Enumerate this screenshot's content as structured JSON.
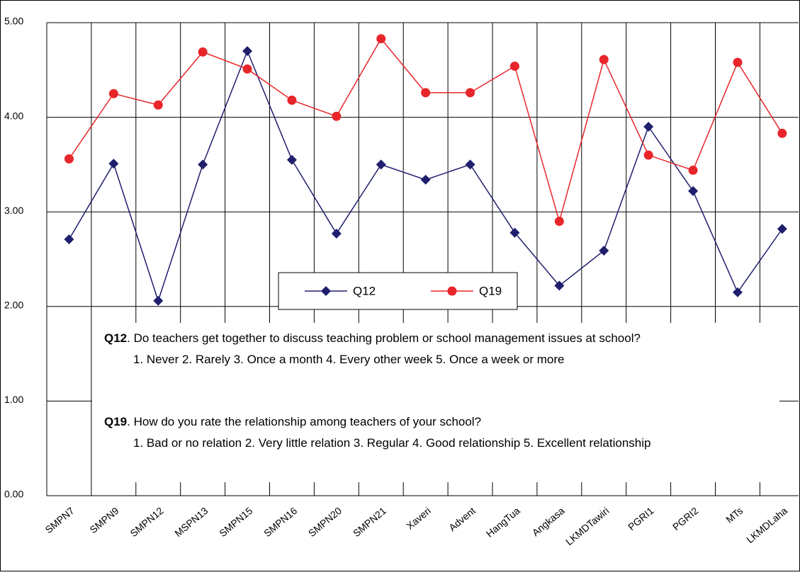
{
  "chart_data": {
    "type": "line",
    "categories": [
      "SMPN7",
      "SMPN9",
      "SMPN12",
      "MSPN13",
      "SMPN15",
      "SMPN16",
      "SMPN20",
      "SMPN21",
      "Xaveri",
      "Advent",
      "HangTua",
      "Angkasa",
      "LKMDTawiri",
      "PGRI1",
      "PGRI2",
      "MTs",
      "LKMDLaha"
    ],
    "series": [
      {
        "name": "Q12",
        "color": "#1f1f6e",
        "marker": "diamond",
        "values": [
          2.71,
          3.51,
          2.06,
          3.5,
          4.7,
          3.55,
          2.77,
          3.5,
          3.34,
          3.5,
          2.78,
          2.22,
          2.59,
          3.9,
          3.22,
          2.15,
          2.82
        ]
      },
      {
        "name": "Q19",
        "color": "#e8262a",
        "marker": "circle",
        "values": [
          3.56,
          4.25,
          4.13,
          4.69,
          4.51,
          4.18,
          4.01,
          4.83,
          4.26,
          4.26,
          4.54,
          2.9,
          4.61,
          3.6,
          3.44,
          4.58,
          3.83
        ]
      }
    ],
    "ylim": [
      0,
      5
    ],
    "yticks": [
      {
        "value": 0,
        "label": "0.00"
      },
      {
        "value": 1,
        "label": "1.00"
      },
      {
        "value": 2,
        "label": "2.00"
      },
      {
        "value": 3,
        "label": "3.00"
      },
      {
        "value": 4,
        "label": "4.00"
      },
      {
        "value": 5,
        "label": "5.00"
      }
    ],
    "grid": true,
    "notes": [
      {
        "label": "Q12",
        "question": ". Do teachers get together to discuss teaching problem or school management issues at school?",
        "options": "1. Never  2. Rarely  3. Once a month  4. Every other week 5. Once a week or more"
      },
      {
        "label": "Q19",
        "question": ". How do you rate the relationship among teachers of your school?",
        "options": "1. Bad or no relation  2. Very little relation  3. Regular  4. Good relationship  5. Excellent relationship"
      }
    ]
  }
}
